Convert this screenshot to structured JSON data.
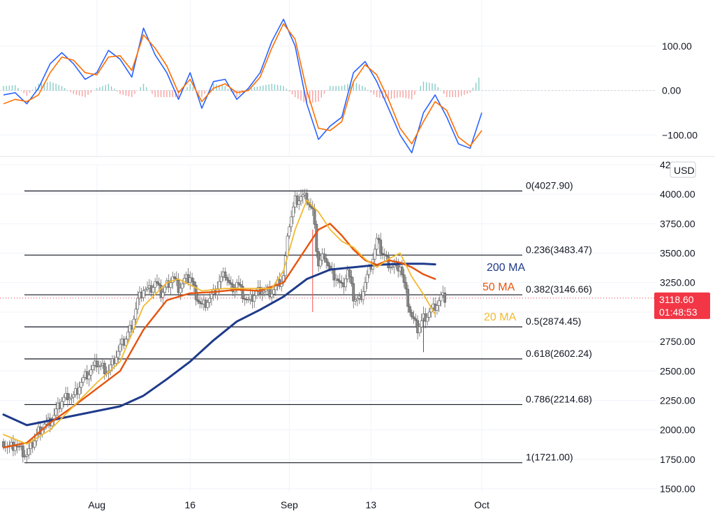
{
  "chart_data": [
    {
      "type": "line",
      "name": "oscillator",
      "x_range": [
        0,
        82
      ],
      "y_range": [
        -145,
        175
      ],
      "y_ticks": [
        100,
        0,
        -100
      ],
      "y_tick_labels": [
        "100.00",
        "0.00",
        "−100.00"
      ],
      "series": [
        {
          "name": "fast",
          "color": "#2962ff",
          "x": [
            0,
            2,
            4,
            6,
            8,
            10,
            12,
            14,
            16,
            18,
            20,
            22,
            24,
            26,
            28,
            30,
            32,
            34,
            36,
            38,
            40,
            42,
            44,
            46,
            48,
            50,
            52,
            54,
            56,
            58,
            60,
            62,
            64,
            66,
            68,
            70,
            72,
            74,
            76,
            78,
            80,
            82
          ],
          "values": [
            -10,
            -5,
            -30,
            5,
            60,
            85,
            60,
            25,
            40,
            90,
            70,
            30,
            140,
            80,
            40,
            -20,
            40,
            -40,
            20,
            25,
            -20,
            5,
            40,
            110,
            160,
            100,
            -30,
            -110,
            -80,
            -60,
            40,
            65,
            20,
            -40,
            -100,
            -140,
            -50,
            -10,
            -60,
            -120,
            -130,
            -50
          ]
        },
        {
          "name": "slow",
          "color": "#ff6d00",
          "x": [
            0,
            2,
            4,
            6,
            8,
            10,
            12,
            14,
            16,
            18,
            20,
            22,
            24,
            26,
            28,
            30,
            32,
            34,
            36,
            38,
            40,
            42,
            44,
            46,
            48,
            50,
            52,
            54,
            56,
            58,
            60,
            62,
            64,
            66,
            68,
            70,
            72,
            74,
            76,
            78,
            80,
            82
          ],
          "values": [
            -30,
            -20,
            -25,
            -10,
            40,
            75,
            68,
            40,
            35,
            75,
            78,
            45,
            125,
            95,
            55,
            -5,
            25,
            -25,
            5,
            15,
            -5,
            0,
            30,
            95,
            150,
            115,
            0,
            -85,
            -90,
            -70,
            20,
            58,
            35,
            -20,
            -85,
            -120,
            -70,
            -25,
            -45,
            -105,
            -125,
            -90
          ]
        }
      ],
      "histogram": {
        "x": [
          0,
          2,
          4,
          6,
          8,
          10,
          12,
          14,
          16,
          18,
          20,
          22,
          24,
          26,
          28,
          30,
          32,
          34,
          36,
          38,
          40,
          42,
          44,
          46,
          48,
          50,
          52,
          54,
          56,
          58,
          60,
          62,
          64,
          66,
          68,
          70,
          72,
          74,
          76,
          78,
          80,
          82
        ],
        "values": [
          10,
          12,
          -12,
          15,
          20,
          10,
          -8,
          -15,
          5,
          15,
          -8,
          -15,
          15,
          -15,
          -15,
          -15,
          15,
          -15,
          15,
          10,
          -15,
          5,
          10,
          15,
          10,
          -15,
          -30,
          -25,
          10,
          10,
          20,
          7,
          -15,
          -20,
          -15,
          -20,
          20,
          15,
          -15,
          -15,
          -5,
          40
        ]
      }
    },
    {
      "type": "candlestick",
      "name": "price",
      "currency": "USD",
      "x_range": [
        0,
        82
      ],
      "y_range": [
        1500,
        4250
      ],
      "y_ticks": [
        4250,
        4000,
        3750,
        3500,
        3250,
        3000,
        2750,
        2500,
        2250,
        2000,
        1750,
        1500
      ],
      "y_tick_labels": [
        "4250.00",
        "4000.00",
        "3750.00",
        "3500.00",
        "3250.00",
        "3000.00",
        "2750.00",
        "2500.00",
        "2250.00",
        "2000.00",
        "1750.00",
        "1500.00"
      ],
      "x_tick_labels": [
        "Aug",
        "16",
        "Sep",
        "13",
        "Oct"
      ],
      "x_tick_positions": [
        16,
        32,
        49,
        63,
        82
      ],
      "close_series": {
        "x": [
          0,
          1,
          2,
          3,
          4,
          5,
          6,
          7,
          8,
          9,
          10,
          11,
          12,
          13,
          14,
          15,
          16,
          17,
          18,
          19,
          20,
          21,
          22,
          23,
          24,
          25,
          26,
          27,
          28,
          29,
          30,
          31,
          32,
          33,
          34,
          35,
          36,
          37,
          38,
          39,
          40,
          41,
          42,
          43,
          44,
          45,
          46,
          47,
          48,
          49,
          50,
          51,
          52,
          53,
          54,
          55,
          56,
          57,
          58,
          59,
          60,
          61,
          62,
          63,
          64,
          65,
          66,
          67,
          68,
          69,
          70,
          71,
          72,
          73,
          74,
          75
        ],
        "values": [
          1900,
          1850,
          1880,
          1820,
          1780,
          1880,
          1990,
          2050,
          2070,
          2150,
          2250,
          2300,
          2280,
          2380,
          2450,
          2500,
          2560,
          2530,
          2500,
          2600,
          2700,
          2780,
          2900,
          3100,
          3200,
          3180,
          3250,
          3150,
          3230,
          3300,
          3200,
          3260,
          3300,
          3150,
          3050,
          3100,
          3150,
          3250,
          3320,
          3200,
          3250,
          3150,
          3080,
          3150,
          3200,
          3180,
          3170,
          3230,
          3300,
          3750,
          3950,
          3980,
          3970,
          3850,
          3400,
          3500,
          3350,
          3300,
          3200,
          3350,
          3120,
          3100,
          3250,
          3400,
          3600,
          3500,
          3420,
          3380,
          3400,
          3150,
          2950,
          2850,
          2950,
          3000,
          3050,
          3118
        ]
      },
      "ma_20": {
        "color": "#f2b930",
        "label": "20 MA",
        "x": [
          0,
          4,
          8,
          12,
          16,
          20,
          24,
          28,
          30,
          34,
          38,
          42,
          46,
          48,
          50,
          52,
          54,
          56,
          58,
          60,
          62,
          64,
          66,
          68,
          70,
          72,
          74
        ],
        "values": [
          1960,
          1880,
          2000,
          2200,
          2400,
          2580,
          3050,
          3250,
          3280,
          3180,
          3200,
          3200,
          3200,
          3350,
          3700,
          3950,
          3850,
          3700,
          3600,
          3550,
          3450,
          3380,
          3450,
          3500,
          3300,
          3150,
          2980
        ]
      },
      "ma_50": {
        "color": "#e5540e",
        "label": "50 MA",
        "x": [
          0,
          4,
          8,
          12,
          16,
          20,
          24,
          28,
          32,
          36,
          40,
          44,
          48,
          52,
          54,
          56,
          58,
          60,
          62,
          64,
          66,
          68,
          70,
          72,
          74
        ],
        "values": [
          1850,
          1890,
          2060,
          2200,
          2350,
          2500,
          2850,
          3100,
          3160,
          3170,
          3190,
          3180,
          3250,
          3550,
          3700,
          3750,
          3650,
          3530,
          3440,
          3400,
          3440,
          3420,
          3380,
          3320,
          3280
        ]
      },
      "ma_200": {
        "color": "#1e3a8a",
        "label": "200 MA",
        "x": [
          0,
          4,
          8,
          12,
          16,
          20,
          24,
          28,
          32,
          36,
          40,
          44,
          48,
          52,
          56,
          60,
          64,
          68,
          72,
          74
        ],
        "values": [
          2130,
          2040,
          2080,
          2120,
          2160,
          2200,
          2290,
          2430,
          2580,
          2760,
          2920,
          3020,
          3130,
          3280,
          3360,
          3380,
          3400,
          3410,
          3410,
          3405
        ]
      },
      "fibonacci": [
        {
          "ratio": "0",
          "label": "0(4027.90)",
          "value": 4027.9
        },
        {
          "ratio": "0.236",
          "label": "0.236(3483.47)",
          "value": 3483.47
        },
        {
          "ratio": "0.382",
          "label": "0.382(3146.66)",
          "value": 3146.66
        },
        {
          "ratio": "0.5",
          "label": "0.5(2874.45)",
          "value": 2874.45
        },
        {
          "ratio": "0.618",
          "label": "0.618(2602.24)",
          "value": 2602.24
        },
        {
          "ratio": "0.786",
          "label": "0.786(2214.68)",
          "value": 2214.68
        },
        {
          "ratio": "1",
          "label": "1(1721.00)",
          "value": 1721.0
        }
      ],
      "last_price": 3118.6,
      "last_price_label": "3118.60",
      "countdown": "01:48:53",
      "badge_color": "#f23645"
    }
  ]
}
